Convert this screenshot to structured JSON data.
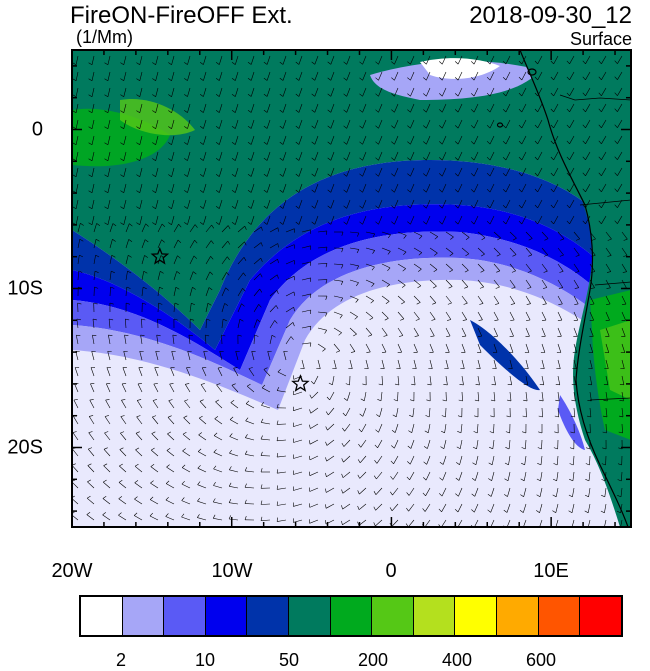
{
  "header": {
    "title": "FireON-FireOFF Ext.",
    "units": "(1/Mm)",
    "datetime": "2018-09-30_12",
    "level": "Surface"
  },
  "map": {
    "region": "South-East Atlantic off Southern Africa",
    "x_ticks": [
      "20W",
      "10W",
      "0",
      "10E"
    ],
    "x_tick_values": [
      -20,
      -10,
      0,
      10
    ],
    "y_ticks": [
      "0",
      "10S",
      "20S"
    ],
    "y_tick_values": [
      0,
      -10,
      -20
    ],
    "lon_range": [
      -20,
      15
    ],
    "lat_range": [
      -25,
      5
    ],
    "markers": [
      {
        "name": "star-marker-1",
        "lon": -14.5,
        "lat": -8
      },
      {
        "name": "star-marker-2",
        "lon": -5.7,
        "lat": -16
      }
    ],
    "wind_barbs": true
  },
  "colorbar": {
    "colors": [
      "#ffffff",
      "#a6a6f7",
      "#5a5af5",
      "#0000ee",
      "#0033aa",
      "#007a5e",
      "#00aa1e",
      "#55c816",
      "#b4e01e",
      "#ffff00",
      "#ffaa00",
      "#ff5500",
      "#ff0000"
    ],
    "labels": [
      "2",
      "10",
      "50",
      "200",
      "400",
      "600"
    ]
  }
}
